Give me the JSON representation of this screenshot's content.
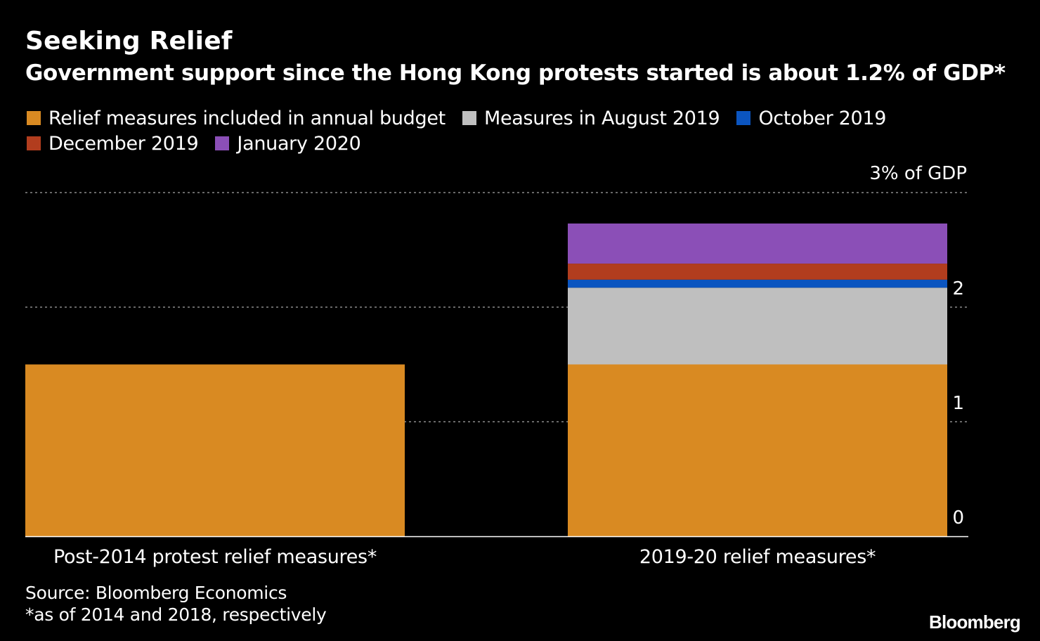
{
  "header": {
    "title": "Seeking Relief",
    "subtitle": "Government support since the Hong Kong protests started is about 1.2% of GDP*"
  },
  "legend": {
    "rows": [
      [
        {
          "label": "Relief measures included in annual budget",
          "color": "#D98A22"
        },
        {
          "label": "Measures in August 2019",
          "color": "#BFBFBF"
        },
        {
          "label": "October 2019",
          "color": "#0B55C0"
        }
      ],
      [
        {
          "label": "December 2019",
          "color": "#B23D1E"
        },
        {
          "label": "January 2020",
          "color": "#8B4FB7"
        }
      ]
    ]
  },
  "chart_data": {
    "type": "bar",
    "stacked": true,
    "categories": [
      "Post-2014 protest relief measures*",
      "2019-20 relief measures*"
    ],
    "series": [
      {
        "name": "Relief measures included in annual budget",
        "color": "#D98A22",
        "values": [
          1.5,
          1.5
        ]
      },
      {
        "name": "Measures in August 2019",
        "color": "#BFBFBF",
        "values": [
          0,
          0.67
        ]
      },
      {
        "name": "October 2019",
        "color": "#0B55C0",
        "values": [
          0,
          0.07
        ]
      },
      {
        "name": "December 2019",
        "color": "#B23D1E",
        "values": [
          0,
          0.14
        ]
      },
      {
        "name": "January 2020",
        "color": "#8B4FB7",
        "values": [
          0,
          0.35
        ]
      }
    ],
    "ylim": [
      0,
      3
    ],
    "yticks": [
      0,
      1,
      2
    ],
    "ytick_labels": [
      "0",
      "1",
      "2"
    ],
    "ytop_label": "3% of GDP",
    "grid": true,
    "legend_position": "top-left"
  },
  "footer": {
    "source": "Source: Bloomberg Economics",
    "note": "*as of 2014 and 2018, respectively",
    "brand": "Bloomberg"
  }
}
